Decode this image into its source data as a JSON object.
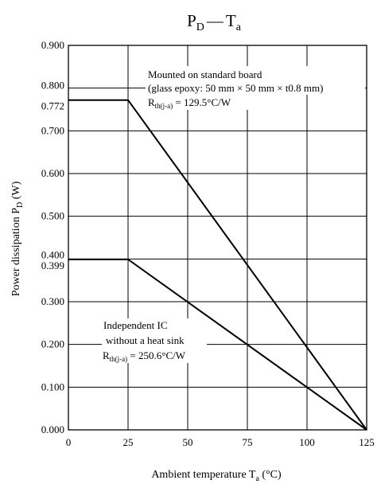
{
  "chart_data": {
    "type": "line",
    "title": {
      "main": "P",
      "main_sub": "D",
      "dash": "—",
      "var": "T",
      "var_sub": "a"
    },
    "xlabel": {
      "text": "Ambient temperature  T",
      "sub": "a",
      "unit": " (°C)"
    },
    "ylabel": {
      "text": "Power dissipation  P",
      "sub": "D",
      "unit": " (W)"
    },
    "xlim": [
      0,
      125
    ],
    "ylim": [
      0,
      0.9
    ],
    "grid": true,
    "x_ticks": [
      {
        "value": 0,
        "label": "0"
      },
      {
        "value": 25,
        "label": "25"
      },
      {
        "value": 50,
        "label": "50"
      },
      {
        "value": 75,
        "label": "75"
      },
      {
        "value": 100,
        "label": "100"
      },
      {
        "value": 125,
        "label": "125"
      }
    ],
    "y_ticks": [
      {
        "value": 0.0,
        "label": "0.000"
      },
      {
        "value": 0.1,
        "label": "0.100"
      },
      {
        "value": 0.2,
        "label": "0.200"
      },
      {
        "value": 0.3,
        "label": "0.300"
      },
      {
        "value": 0.399,
        "label": "0.399",
        "extra": true
      },
      {
        "value": 0.4,
        "label": "0.400"
      },
      {
        "value": 0.5,
        "label": "0.500"
      },
      {
        "value": 0.6,
        "label": "0.600"
      },
      {
        "value": 0.7,
        "label": "0.700"
      },
      {
        "value": 0.772,
        "label": "0.772",
        "extra": true
      },
      {
        "value": 0.8,
        "label": "0.800"
      },
      {
        "value": 0.9,
        "label": "0.900"
      }
    ],
    "series": [
      {
        "points": [
          [
            0,
            0.772
          ],
          [
            25,
            0.772
          ],
          [
            125,
            0.0
          ]
        ],
        "annotation": {
          "line1": "Mounted on standard board",
          "line2": "(glass epoxy: 50 mm × 50 mm × t0.8 mm)",
          "r_main": "R",
          "r_sub": "th(j-a)",
          "r_value": " = 129.5°C/W"
        }
      },
      {
        "points": [
          [
            0,
            0.399
          ],
          [
            25,
            0.399
          ],
          [
            125,
            0.0
          ]
        ],
        "annotation": {
          "line1": "Independent IC",
          "line2": "without a heat sink",
          "r_main": "R",
          "r_sub": "th(j-a)",
          "r_value": " = 250.6°C/W"
        }
      }
    ]
  }
}
